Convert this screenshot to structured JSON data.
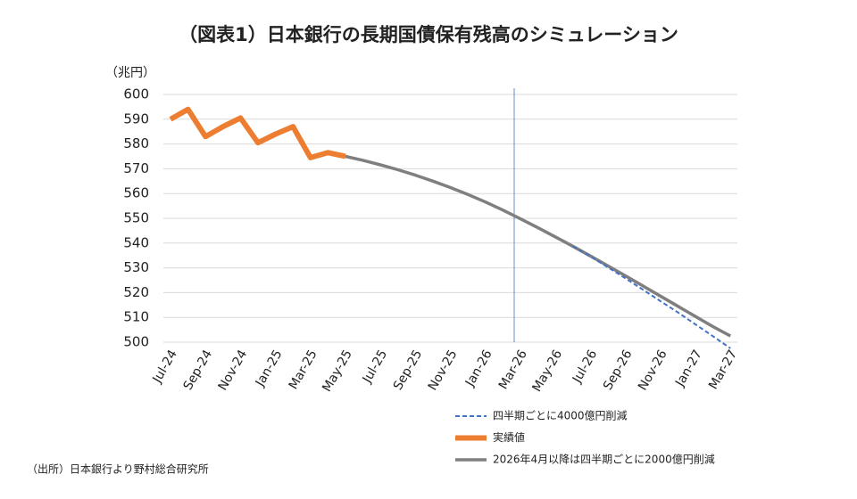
{
  "chart_data": {
    "type": "line",
    "title": "（図表1）日本銀行の長期国債保有残高のシミュレーション",
    "y_label": "（兆円）",
    "source": "（出所）日本銀行より野村総合研究所",
    "categories": [
      "Jul-24",
      null,
      "Sep-24",
      null,
      "Nov-24",
      null,
      "Jan-25",
      null,
      "Mar-25",
      null,
      "May-25",
      null,
      "Jul-25",
      null,
      "Sep-25",
      null,
      "Nov-25",
      null,
      "Jan-26",
      null,
      "Mar-26",
      null,
      "May-26",
      null,
      "Jul-26",
      null,
      "Sep-26",
      null,
      "Nov-26",
      null,
      "Jan-27",
      null,
      "Mar-27"
    ],
    "series": [
      {
        "name": "四半期ごとに4000億円削減",
        "color": "#4472c4",
        "dashed": true,
        "width": 2,
        "values": [
          null,
          null,
          null,
          null,
          null,
          null,
          null,
          null,
          null,
          null,
          null,
          null,
          null,
          null,
          null,
          null,
          null,
          null,
          null,
          null,
          null,
          null,
          null,
          538.7,
          534.6,
          530.2,
          525.8,
          521.2,
          516.6,
          512,
          507.2,
          502.4,
          497.5
        ]
      },
      {
        "name": "実績値",
        "color": "#ed7d31",
        "dashed": false,
        "width": 6,
        "values": [
          590,
          594,
          583,
          587,
          590.5,
          580.5,
          584,
          587,
          574.5,
          576.5,
          575,
          null,
          null,
          null,
          null,
          null,
          null,
          null,
          null,
          null,
          null,
          null,
          null,
          null,
          null,
          null,
          null,
          null,
          null,
          null,
          null,
          null,
          null
        ]
      },
      {
        "name": "2026年4月以降は四半期ごとに2000億円削減",
        "color": "#7f7f7f",
        "dashed": false,
        "width": 3.5,
        "values": [
          null,
          null,
          null,
          null,
          null,
          null,
          null,
          null,
          null,
          null,
          575,
          573.4,
          571.6,
          569.6,
          567.4,
          565,
          562.4,
          559.6,
          556.6,
          553.3,
          549.8,
          546.2,
          542.5,
          538.7,
          534.8,
          530.8,
          526.8,
          522.7,
          518.6,
          514.5,
          510.4,
          506.3,
          502.5
        ]
      }
    ],
    "ylim": [
      500,
      600
    ],
    "yticks": [
      500,
      510,
      520,
      530,
      540,
      550,
      560,
      570,
      580,
      590,
      600
    ],
    "grid": true
  }
}
